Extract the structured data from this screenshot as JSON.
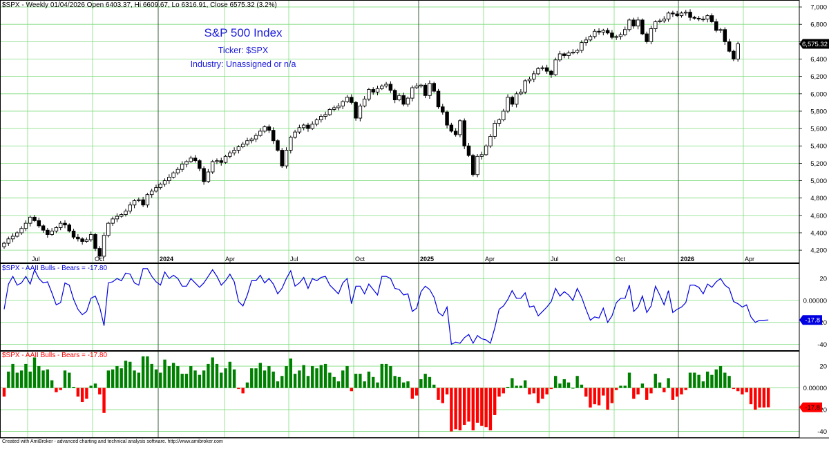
{
  "footer": "Created with AmiBroker - advanced charting and technical analysis software. http://www.amibroker.com",
  "colors": {
    "background": "#ffffff",
    "grid_vertical": "#7fdc7f",
    "grid_horizontal": "#7fdc7f",
    "year_line": "#000000",
    "candle_up_fill": "#ffffff",
    "candle_down_fill": "#000000",
    "candle_outline": "#000000",
    "line_series": "#0000e0",
    "hist_positive": "#008000",
    "hist_negative": "#ff0000",
    "annotation_text": "#1a1ad9",
    "value_tag_price": "#000000",
    "value_tag_line": "#0000e0",
    "value_tag_hist": "#ff0000"
  },
  "chart_data": [
    {
      "type": "candlestick",
      "header": "$SPX - Weekly 01/04/2026 Open 6403.37, Hi 6609.67, Lo 6316.91, Close 6575.32 (3.2%)",
      "annotations": [
        "S&P 500 Index",
        "Ticker: $SPX",
        "Industry:  Unassigned or n/a"
      ],
      "ylim": [
        4050,
        7080
      ],
      "yticks": [
        4200,
        4400,
        4600,
        4800,
        5000,
        5200,
        5400,
        5600,
        5800,
        6000,
        6200,
        6400,
        6600,
        6800,
        7000
      ],
      "ytick_labels": [
        "4,200",
        "4,400",
        "4,600",
        "4,800",
        "5,000",
        "5,200",
        "5,400",
        "5,600",
        "5,800",
        "6,000",
        "6,200",
        "6,400",
        "6,600",
        "6,800",
        "7,000"
      ],
      "last_value_label": "6,575.32",
      "last_value": 6575.32,
      "close": [
        4280,
        4330,
        4360,
        4400,
        4450,
        4510,
        4580,
        4540,
        4480,
        4430,
        4380,
        4420,
        4460,
        4510,
        4490,
        4420,
        4350,
        4330,
        4300,
        4320,
        4380,
        4220,
        4130,
        4370,
        4510,
        4560,
        4590,
        4610,
        4650,
        4720,
        4770,
        4780,
        4720,
        4840,
        4880,
        4920,
        4960,
        5000,
        5040,
        5090,
        5130,
        5190,
        5220,
        5260,
        5230,
        5140,
        4990,
        5100,
        5220,
        5230,
        5210,
        5280,
        5320,
        5350,
        5390,
        5420,
        5460,
        5480,
        5520,
        5570,
        5620,
        5580,
        5460,
        5350,
        5170,
        5350,
        5500,
        5560,
        5610,
        5640,
        5600,
        5650,
        5700,
        5740,
        5760,
        5820,
        5840,
        5860,
        5910,
        5960,
        5900,
        5720,
        5860,
        5940,
        6050,
        6020,
        6060,
        6090,
        6110,
        6040,
        5930,
        5980,
        5880,
        5950,
        6070,
        6090,
        6100,
        5980,
        6120,
        6030,
        5850,
        5790,
        5640,
        5570,
        5530,
        5690,
        5400,
        5290,
        5070,
        5280,
        5300,
        5400,
        5510,
        5660,
        5700,
        5800,
        5960,
        5880,
        6000,
        6020,
        6150,
        6170,
        6230,
        6290,
        6300,
        6260,
        6220,
        6390,
        6460,
        6440,
        6470,
        6480,
        6500,
        6590,
        6620,
        6660,
        6720,
        6710,
        6730,
        6700,
        6650,
        6660,
        6680,
        6740,
        6850,
        6780,
        6850,
        6690,
        6600,
        6750,
        6830,
        6840,
        6860,
        6930,
        6920,
        6900,
        6930,
        6940,
        6880,
        6870,
        6860,
        6860,
        6900,
        6830,
        6730,
        6740,
        6600,
        6490,
        6400,
        6575.32
      ],
      "x_labels": [
        "Jul",
        "Oct",
        "2024",
        "Apr",
        "Jul",
        "Oct",
        "2025",
        "Apr",
        "Jul",
        "Oct",
        "2026",
        "Apr"
      ]
    },
    {
      "type": "line",
      "header": "$SPX - AAII Bulls - Bears = -17.80",
      "series_label": "AAII Bulls - Bears",
      "ylim": [
        -46,
        34
      ],
      "yticks": [
        20,
        0,
        -20,
        -40
      ],
      "ytick_labels": [
        "20",
        "0.00000",
        "-20",
        "-40"
      ],
      "last_value_label": "-17.8",
      "values": [
        -8,
        15,
        22,
        14,
        16,
        22,
        15,
        28,
        20,
        16,
        17,
        7,
        -4,
        -2,
        16,
        14,
        1,
        -8,
        -13,
        -10,
        2,
        4,
        -6,
        -23,
        16,
        17,
        20,
        18,
        25,
        24,
        16,
        14,
        29,
        29,
        22,
        17,
        14,
        26,
        20,
        23,
        20,
        13,
        13,
        20,
        16,
        12,
        16,
        22,
        28,
        22,
        14,
        18,
        24,
        17,
        -1,
        -5,
        5,
        18,
        18,
        23,
        16,
        20,
        15,
        6,
        11,
        20,
        27,
        13,
        16,
        21,
        11,
        20,
        18,
        21,
        22,
        14,
        10,
        6,
        16,
        20,
        -3,
        13,
        13,
        6,
        15,
        10,
        5,
        22,
        22,
        20,
        11,
        10,
        5,
        6,
        -10,
        -7,
        8,
        13,
        10,
        3,
        -11,
        -14,
        -6,
        -40,
        -38,
        -39,
        -34,
        -31,
        -39,
        -32,
        -35,
        -36,
        -39,
        -25,
        -8,
        -5,
        1,
        9,
        2,
        2,
        7,
        -6,
        -5,
        -14,
        -10,
        -6,
        -1,
        11,
        4,
        8,
        5,
        0,
        11,
        3,
        -8,
        -18,
        -15,
        -16,
        -7,
        -20,
        -14,
        -2,
        2,
        2,
        14,
        -10,
        -6,
        4,
        -11,
        -5,
        13,
        5,
        -4,
        9,
        -11,
        -8,
        -6,
        -2,
        14,
        14,
        12,
        6,
        15,
        12,
        17,
        20,
        14,
        11,
        -1,
        -3,
        -6,
        -4,
        -15,
        -20,
        -18,
        -18,
        -17.8
      ]
    },
    {
      "type": "bar",
      "header": "$SPX - AAII Bulls - Bears = -17.80",
      "series_label": "AAII Bulls - Bears",
      "ylim": [
        -46,
        34
      ],
      "yticks": [
        20,
        0,
        -20,
        -40
      ],
      "ytick_labels": [
        "20",
        "0.00000",
        "-20",
        "-40"
      ],
      "last_value_label": "-17.8"
    }
  ]
}
